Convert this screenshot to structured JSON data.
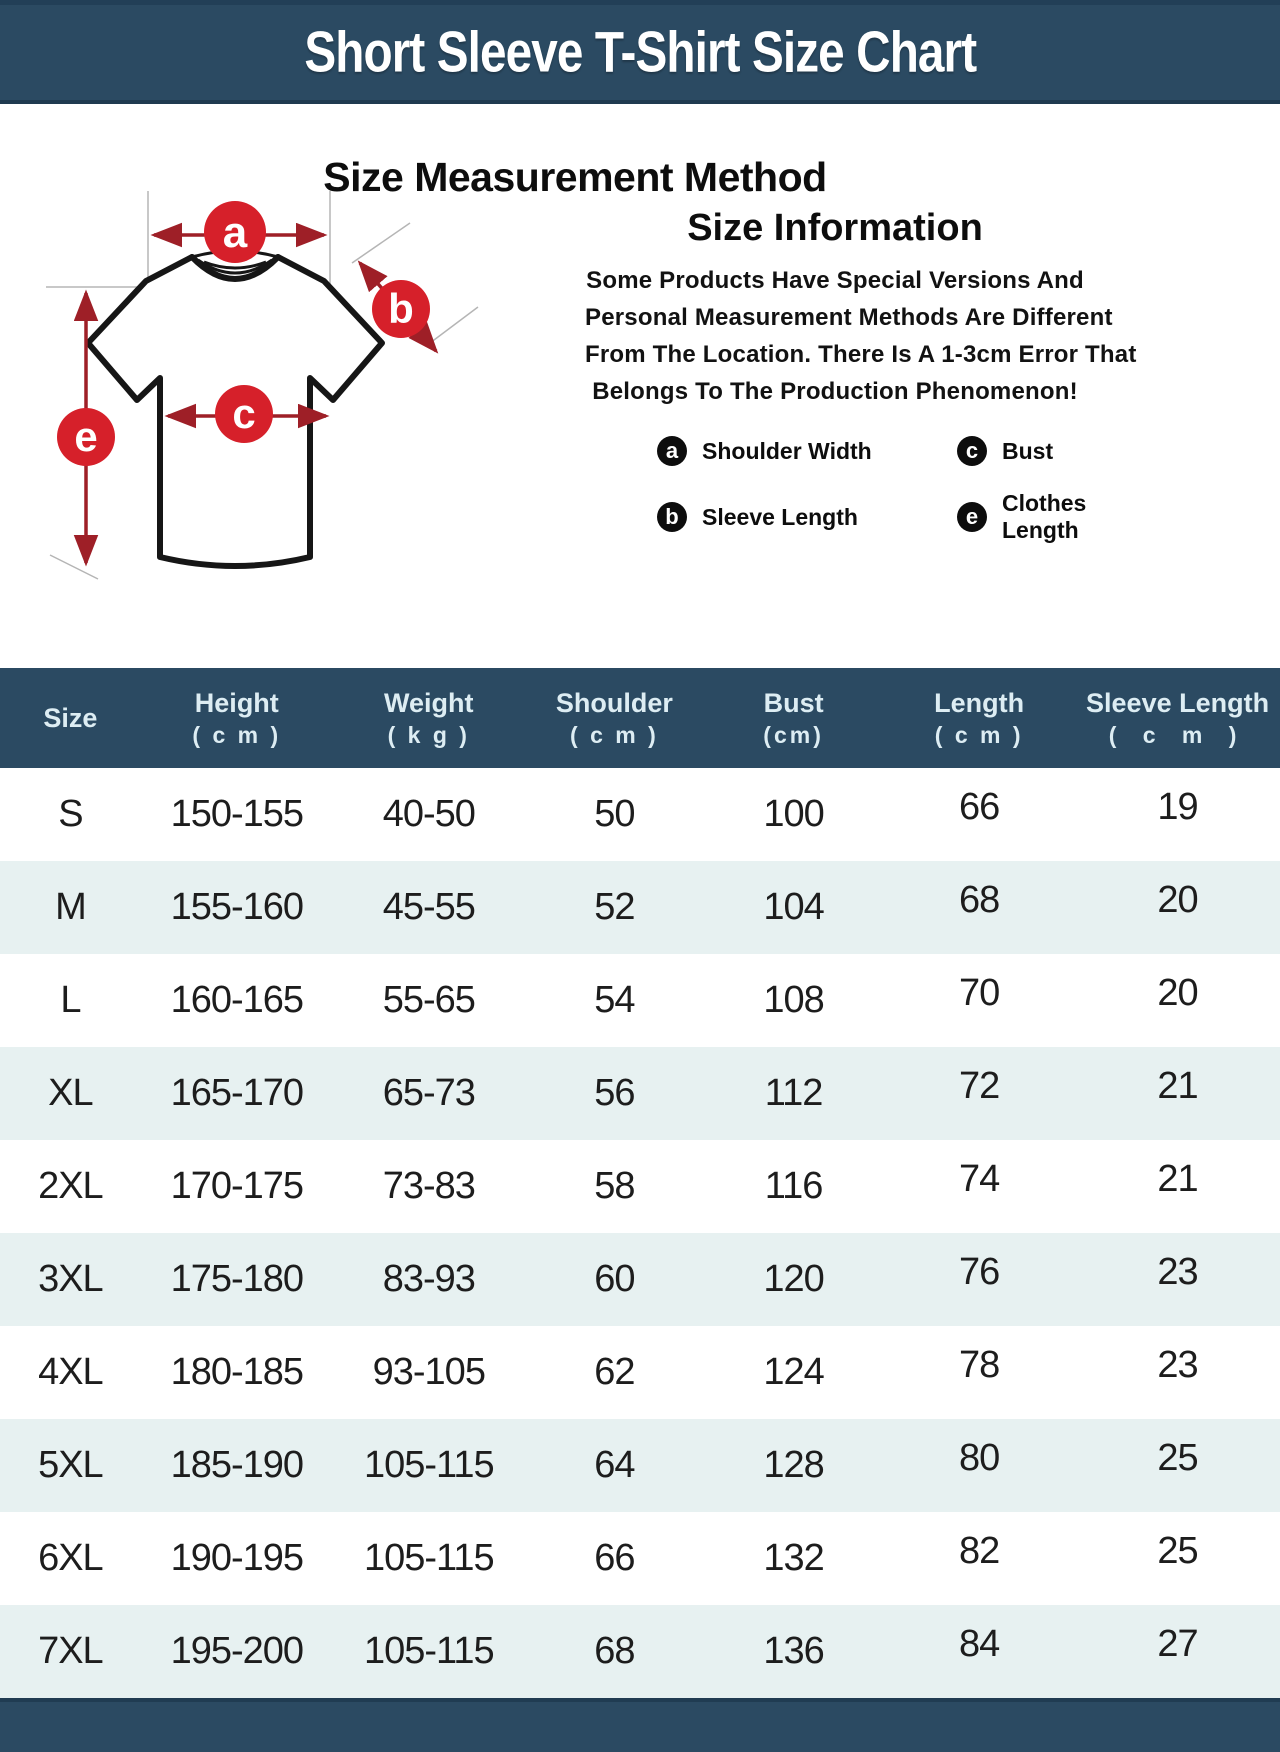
{
  "title": "Short Sleeve T-Shirt Size Chart",
  "colors": {
    "header_bg": "#2b4a62",
    "header_text": "#ddedf3",
    "row_alt_bg": "#e7f1f1",
    "row_bg": "#ffffff",
    "marker_red": "#d6202a",
    "arrow_red": "#9e1f27",
    "legend_dot": "#0d0d0d",
    "body_text": "#1d1d1d"
  },
  "measurement": {
    "heading": "Size Measurement Method",
    "info_heading": "Size Information",
    "info_lines": [
      "Some Products Have Special Versions And",
      "Personal Measurement Methods Are Different",
      "From The Location. There Is A 1-3cm Error That",
      "Belongs To The Production Phenomenon!"
    ],
    "points": {
      "a": "a",
      "b": "b",
      "c": "c",
      "e": "e"
    },
    "legend": [
      {
        "key": "a",
        "label": "Shoulder Width"
      },
      {
        "key": "c",
        "label": "Bust"
      },
      {
        "key": "b",
        "label": "Sleeve Length"
      },
      {
        "key": "e",
        "label": "Clothes Length"
      }
    ]
  },
  "chart_data": {
    "type": "table",
    "title": "Short Sleeve T-Shirt Size Chart",
    "columns": [
      {
        "label": "Size",
        "sub": ""
      },
      {
        "label": "Height",
        "sub": "( c m )"
      },
      {
        "label": "Weight",
        "sub": "( k g )"
      },
      {
        "label": "Shoulder",
        "sub": "( c m )"
      },
      {
        "label": "Bust",
        "sub": "(cm)"
      },
      {
        "label": "Length",
        "sub": "( c m )"
      },
      {
        "label": "Sleeve Length",
        "sub": "( c m )"
      }
    ],
    "rows": [
      [
        "S",
        "150-155",
        "40-50",
        "50",
        "100",
        "66",
        "19"
      ],
      [
        "M",
        "155-160",
        "45-55",
        "52",
        "104",
        "68",
        "20"
      ],
      [
        "L",
        "160-165",
        "55-65",
        "54",
        "108",
        "70",
        "20"
      ],
      [
        "XL",
        "165-170",
        "65-73",
        "56",
        "112",
        "72",
        "21"
      ],
      [
        "2XL",
        "170-175",
        "73-83",
        "58",
        "116",
        "74",
        "21"
      ],
      [
        "3XL",
        "175-180",
        "83-93",
        "60",
        "120",
        "76",
        "23"
      ],
      [
        "4XL",
        "180-185",
        "93-105",
        "62",
        "124",
        "78",
        "23"
      ],
      [
        "5XL",
        "185-190",
        "105-115",
        "64",
        "128",
        "80",
        "25"
      ],
      [
        "6XL",
        "190-195",
        "105-115",
        "66",
        "132",
        "82",
        "25"
      ],
      [
        "7XL",
        "195-200",
        "105-115",
        "68",
        "136",
        "84",
        "27"
      ]
    ]
  }
}
